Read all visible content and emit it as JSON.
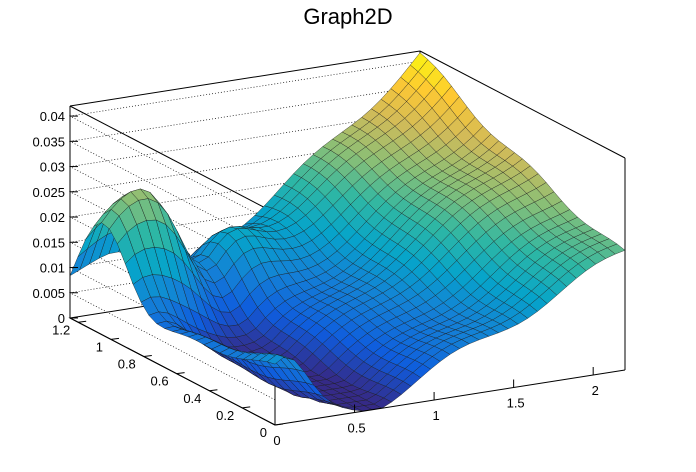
{
  "chart_data": {
    "type": "surface",
    "title": "Graph2D",
    "xlabel": "",
    "ylabel": "",
    "zlabel": "",
    "xlim": [
      0,
      2.2
    ],
    "ylim": [
      0,
      1.25
    ],
    "zlim": [
      0,
      0.042
    ],
    "x_ticks": [
      0,
      0.5,
      1,
      1.5,
      2
    ],
    "x_tick_labels": [
      "0",
      "0.5",
      "1",
      "1.5",
      "2"
    ],
    "y_ticks": [
      0,
      0.2,
      0.4,
      0.6,
      0.8,
      1,
      1.2
    ],
    "y_tick_labels": [
      "0",
      "0.2",
      "0.4",
      "0.6",
      "0.8",
      "1",
      "1.2"
    ],
    "z_ticks": [
      0,
      0.005,
      0.01,
      0.015,
      0.02,
      0.025,
      0.03,
      0.035,
      0.04
    ],
    "z_tick_labels": [
      "0",
      "0.005",
      "0.01",
      "0.015",
      "0.02",
      "0.025",
      "0.03",
      "0.035",
      "0.04"
    ],
    "grid": true,
    "colormap": [
      "#352a87",
      "#0f5cdd",
      "#1481d6",
      "#06a4ca",
      "#2eb7a4",
      "#87bf77",
      "#d1bb59",
      "#fec832",
      "#f9fb0e"
    ],
    "surface_note_values": {
      "ridge_front_max": 0.035,
      "ridge_back_max": 0.041,
      "valley_min": 0.0
    }
  }
}
